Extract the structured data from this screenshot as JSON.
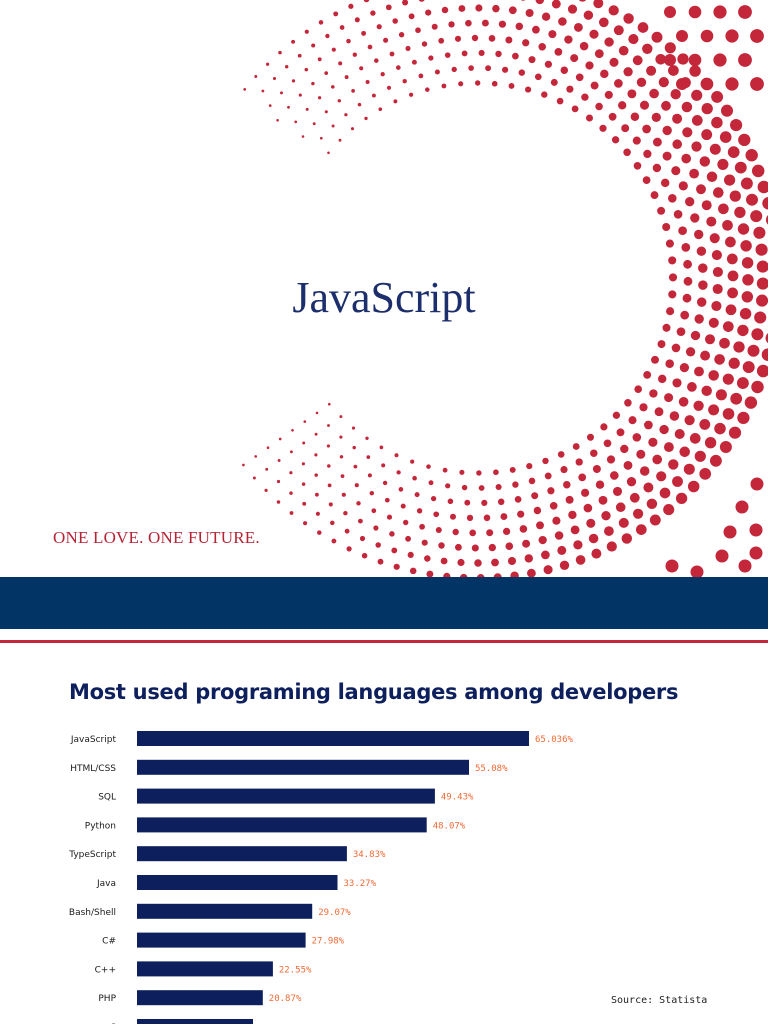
{
  "slide": {
    "title": "JavaScript",
    "tagline": "ONE LOVE. ONE FUTURE.",
    "colors": {
      "title": "#1c2e6b",
      "accent": "#c4263a",
      "band": "#033466"
    }
  },
  "chart_data": {
    "type": "bar",
    "orientation": "horizontal",
    "title": "Most used programing languages among developers",
    "categories": [
      "JavaScript",
      "HTML/CSS",
      "SQL",
      "Python",
      "TypeScript",
      "Java",
      "Bash/Shell",
      "C#",
      "C++",
      "PHP",
      "C"
    ],
    "values": [
      65.036,
      55.08,
      49.43,
      48.07,
      34.83,
      33.27,
      29.07,
      27.98,
      22.55,
      20.87,
      19.25
    ],
    "value_labels": [
      "65.036%",
      "55.08%",
      "49.43%",
      "48.07%",
      "34.83%",
      "33.27%",
      "29.07%",
      "27.98%",
      "22.55%",
      "20.87%",
      ""
    ],
    "source": "Source: Statista",
    "bar_color": "#0d1f5c",
    "label_color": "#f06a35"
  }
}
